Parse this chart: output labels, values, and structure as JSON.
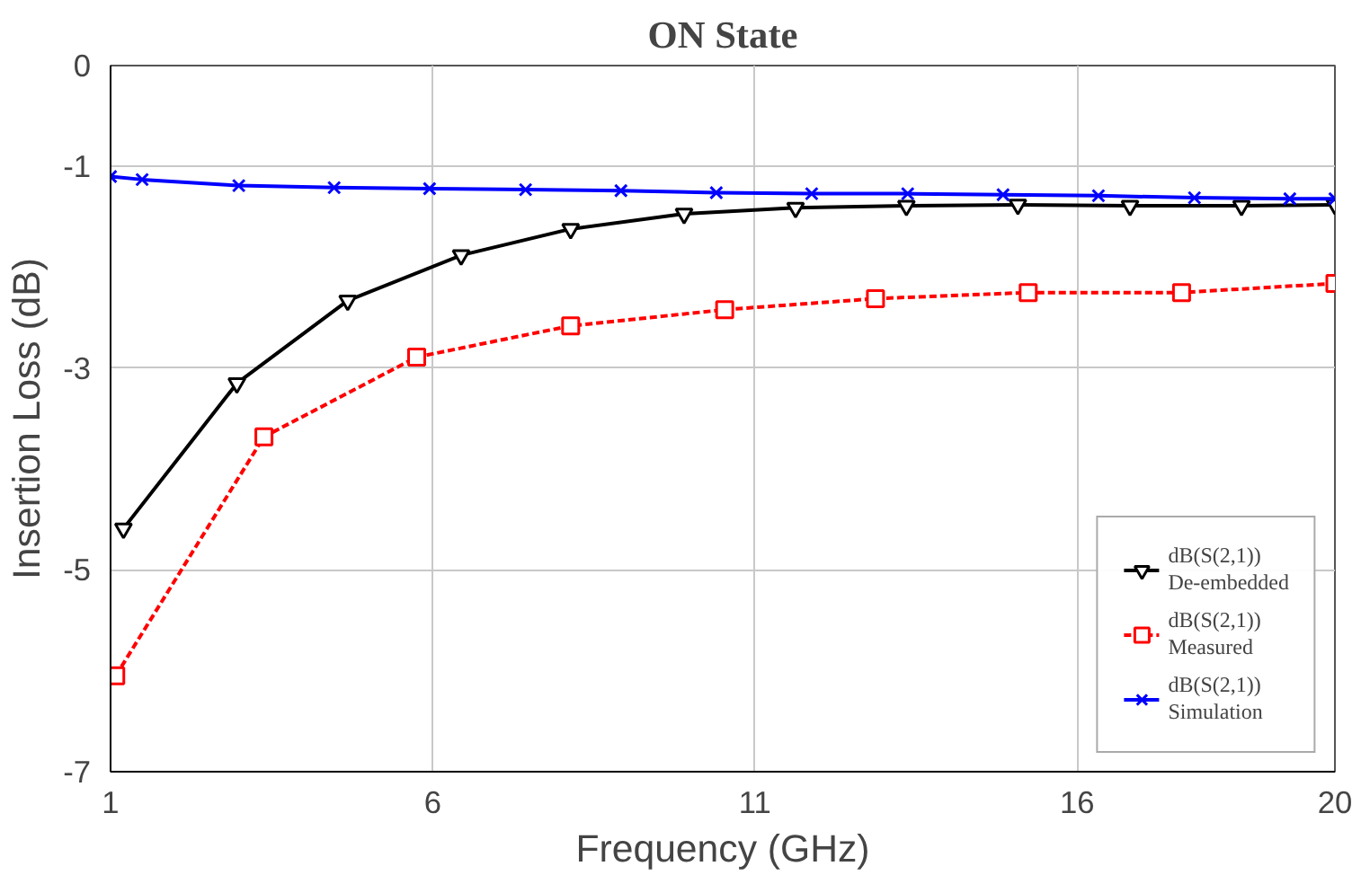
{
  "chart_data": {
    "type": "line",
    "title": "ON State",
    "xlabel": "Frequency (GHz)",
    "ylabel": "Insertion Loss (dB)",
    "xlim": [
      1,
      20
    ],
    "xticks": [
      1,
      6,
      11,
      16,
      20
    ],
    "ylim": [
      -7,
      0
    ],
    "yticks": [
      0,
      -1,
      -3,
      -5,
      -7
    ],
    "grid": true,
    "legend": "bottom right",
    "series": [
      {
        "name": "dB(S(2,1))\nDe-embedded",
        "color": "#000000",
        "marker": "triangle",
        "line_style": "solid",
        "x": [
          1.2,
          2.96,
          4.68,
          6.44,
          8.14,
          9.9,
          11.63,
          13.35,
          15.08,
          16.82,
          18.55,
          20
        ],
        "values": [
          -4.59,
          -3.15,
          -2.33,
          -1.88,
          -1.62,
          -1.47,
          -1.41,
          -1.39,
          -1.38,
          -1.39,
          -1.39,
          -1.38
        ]
      },
      {
        "name": "dB(S(2,1))\nMeasured",
        "color": "#ff0000",
        "marker": "square",
        "line_style": "dashed",
        "x": [
          1.08,
          3.38,
          5.75,
          8.14,
          10.53,
          12.87,
          15.24,
          17.62,
          20
        ],
        "values": [
          -6.05,
          -3.68,
          -2.89,
          -2.58,
          -2.42,
          -2.31,
          -2.25,
          -2.25,
          -2.16
        ]
      },
      {
        "name": "dB(S(2,1))\nSimulation",
        "color": "#0000ff",
        "marker": "cross",
        "line_style": "solid",
        "x": [
          1,
          1.49,
          2.99,
          4.47,
          5.95,
          7.44,
          8.92,
          10.4,
          11.88,
          13.37,
          14.85,
          16.33,
          17.82,
          19.3,
          20
        ],
        "values": [
          -1.1,
          -1.13,
          -1.19,
          -1.21,
          -1.22,
          -1.23,
          -1.24,
          -1.26,
          -1.27,
          -1.27,
          -1.28,
          -1.29,
          -1.31,
          -1.32,
          -1.32
        ]
      }
    ]
  }
}
